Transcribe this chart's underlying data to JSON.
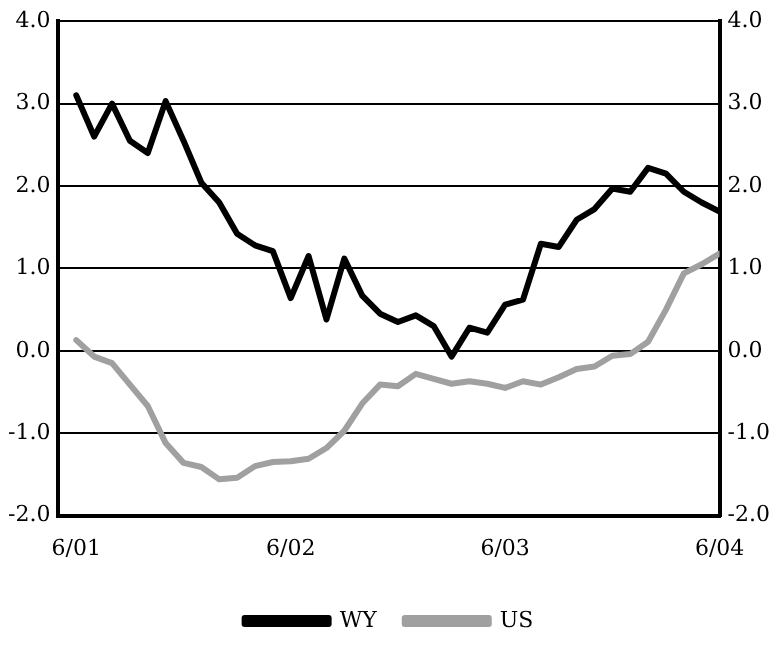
{
  "chart_data": {
    "type": "line",
    "x": [
      "2001-06",
      "2001-07",
      "2001-08",
      "2001-09",
      "2001-10",
      "2001-11",
      "2001-12",
      "2002-01",
      "2002-02",
      "2002-03",
      "2002-04",
      "2002-05",
      "2002-06",
      "2002-07",
      "2002-08",
      "2002-09",
      "2002-10",
      "2002-11",
      "2002-12",
      "2003-01",
      "2003-02",
      "2003-03",
      "2003-04",
      "2003-05",
      "2003-06",
      "2003-07",
      "2003-08",
      "2003-09",
      "2003-10",
      "2003-11",
      "2003-12",
      "2004-01",
      "2004-02",
      "2004-03",
      "2004-04",
      "2004-05",
      "2004-06"
    ],
    "series": [
      {
        "name": "WY",
        "color": "#000000",
        "values": [
          3.1,
          2.6,
          3.0,
          2.55,
          2.4,
          3.03,
          2.55,
          2.04,
          1.8,
          1.42,
          1.28,
          1.21,
          0.64,
          1.15,
          0.38,
          1.12,
          0.67,
          0.45,
          0.35,
          0.43,
          0.3,
          -0.07,
          0.28,
          0.22,
          0.56,
          0.62,
          1.3,
          1.26,
          1.59,
          1.72,
          1.97,
          1.93,
          2.22,
          2.15,
          1.93,
          1.8,
          1.69
        ]
      },
      {
        "name": "US",
        "color": "#a0a0a0",
        "values": [
          0.13,
          -0.07,
          -0.15,
          -0.41,
          -0.67,
          -1.12,
          -1.36,
          -1.41,
          -1.56,
          -1.54,
          -1.4,
          -1.35,
          -1.34,
          -1.31,
          -1.18,
          -0.97,
          -0.64,
          -0.41,
          -0.43,
          -0.28,
          -0.34,
          -0.4,
          -0.37,
          -0.4,
          -0.45,
          -0.37,
          -0.41,
          -0.32,
          -0.22,
          -0.19,
          -0.06,
          -0.04,
          0.11,
          0.5,
          0.94,
          1.05,
          1.18
        ]
      }
    ],
    "xlim": [
      "2001-05",
      "2004-06"
    ],
    "xticks": [
      {
        "value": "2001-06",
        "label": "6/01"
      },
      {
        "value": "2002-06",
        "label": "6/02"
      },
      {
        "value": "2003-06",
        "label": "6/03"
      },
      {
        "value": "2004-06",
        "label": "6/04"
      }
    ],
    "ylim": [
      -2,
      4
    ],
    "yticks": [
      {
        "value": -2,
        "label": "-2.0"
      },
      {
        "value": -1,
        "label": "-1.0"
      },
      {
        "value": 0,
        "label": "0.0"
      },
      {
        "value": 1,
        "label": "1.0"
      },
      {
        "value": 2,
        "label": "2.0"
      },
      {
        "value": 3,
        "label": "3.0"
      },
      {
        "value": 4,
        "label": "4.0"
      }
    ],
    "y2lim": [
      -2,
      4
    ],
    "y2ticks": [
      {
        "value": -2,
        "label": "-2.0"
      },
      {
        "value": -1,
        "label": "-1.0"
      },
      {
        "value": 0,
        "label": "0.0"
      },
      {
        "value": 1,
        "label": "1.0"
      },
      {
        "value": 2,
        "label": "2.0"
      },
      {
        "value": 3,
        "label": "3.0"
      },
      {
        "value": 4,
        "label": "4.0"
      }
    ],
    "grid": "y",
    "legend": "bottom",
    "marker": "none",
    "line_style": "solid"
  }
}
